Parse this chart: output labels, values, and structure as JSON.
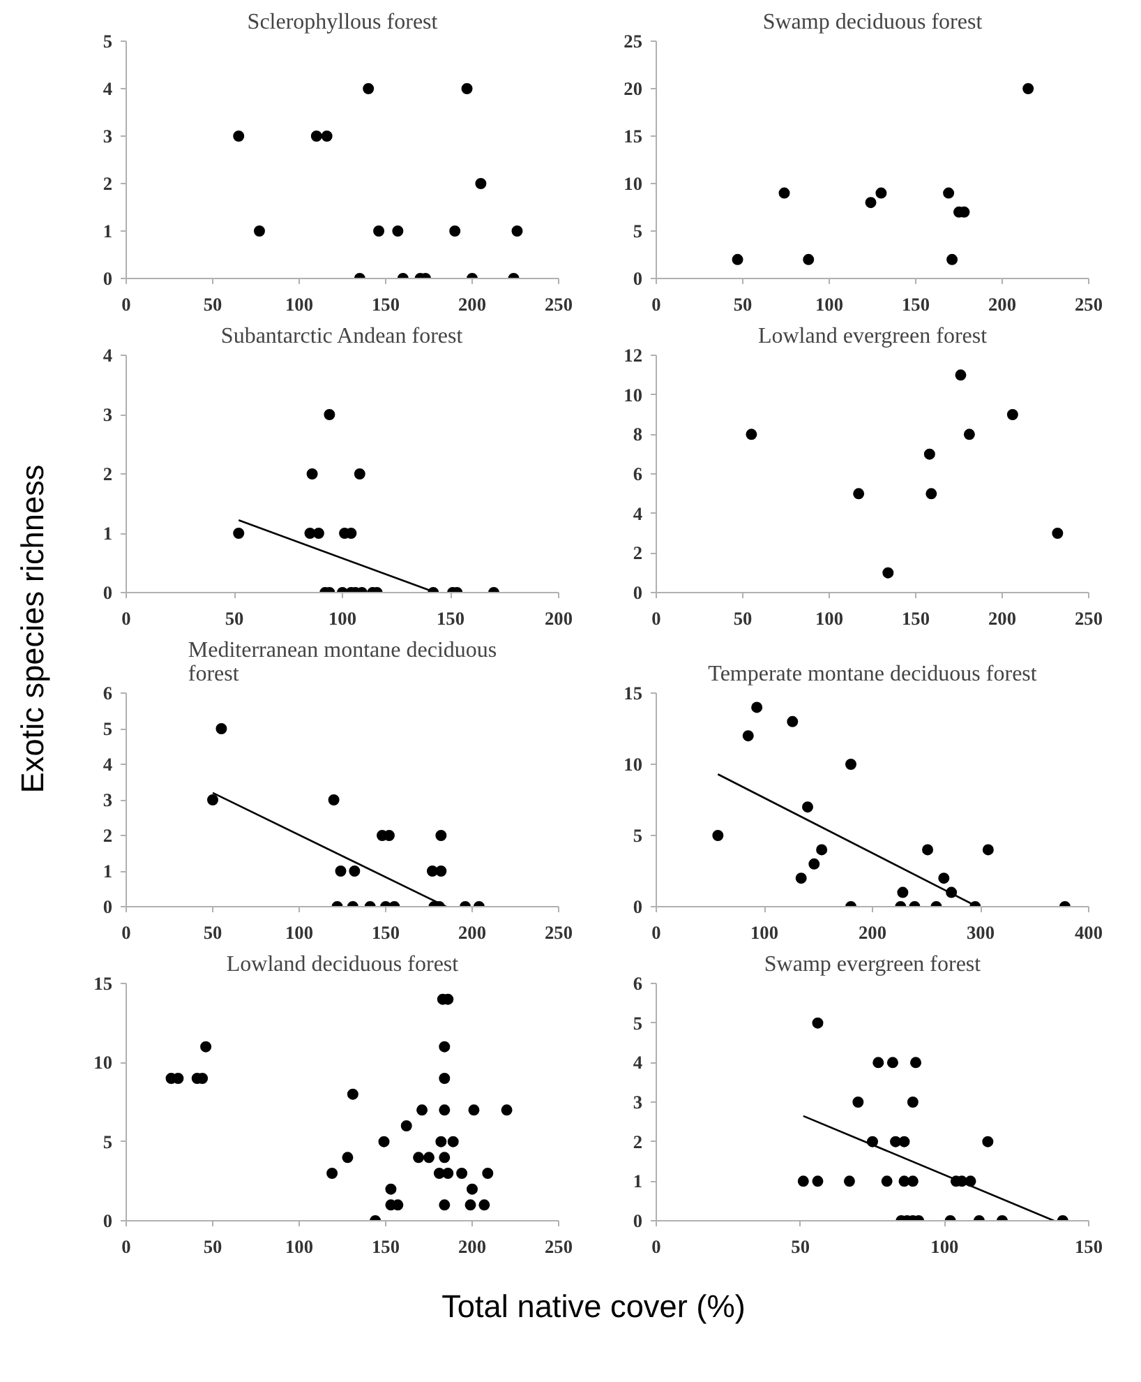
{
  "chart_data": [
    {
      "type": "scatter",
      "title": "Sclerophyllous forest",
      "xlim": [
        0,
        250
      ],
      "xticks": [
        0,
        50,
        100,
        150,
        200,
        250
      ],
      "ylim": [
        0,
        5
      ],
      "yticks": [
        0,
        1,
        2,
        3,
        4,
        5
      ],
      "series": [
        {
          "color": "#000000",
          "marker": "circle",
          "x": [
            65,
            77,
            110,
            116,
            140,
            135,
            146,
            157,
            160,
            170,
            173,
            190,
            197,
            200,
            205,
            224,
            226
          ],
          "values": [
            3,
            1,
            3,
            3,
            4,
            0,
            1,
            1,
            0,
            0,
            0,
            1,
            4,
            0,
            2,
            0,
            1
          ]
        }
      ]
    },
    {
      "type": "scatter",
      "title": "Swamp deciduous forest",
      "xlim": [
        0,
        250
      ],
      "xticks": [
        0,
        50,
        100,
        150,
        200,
        250
      ],
      "ylim": [
        0,
        25
      ],
      "yticks": [
        0,
        5,
        10,
        15,
        20,
        25
      ],
      "series": [
        {
          "color": "#000000",
          "marker": "circle",
          "x": [
            47,
            74,
            88,
            124,
            130,
            169,
            171,
            175,
            178,
            215
          ],
          "values": [
            2,
            9,
            2,
            8,
            9,
            9,
            2,
            7,
            7,
            20
          ]
        }
      ]
    },
    {
      "type": "scatter",
      "title": "Subantarctic Andean forest",
      "ylabel": "Exotic species richness",
      "xlim": [
        0,
        200
      ],
      "xticks": [
        0,
        50,
        100,
        150,
        200
      ],
      "ylim": [
        0,
        4
      ],
      "yticks": [
        0,
        1,
        2,
        3,
        4
      ],
      "series": [
        {
          "color": "#000000",
          "marker": "circle",
          "x": [
            52,
            86,
            85,
            89,
            94,
            92,
            94,
            100,
            101,
            104,
            108,
            104,
            106,
            109,
            114,
            116,
            142,
            151,
            153,
            170
          ],
          "values": [
            1,
            2,
            1,
            1,
            3,
            0,
            0,
            0,
            1,
            1,
            2,
            0,
            0,
            0,
            0,
            0,
            0,
            0,
            0,
            0
          ]
        },
        {
          "type": "line",
          "color": "#000000",
          "x": [
            52,
            141
          ],
          "values": [
            1.22,
            0.03
          ]
        }
      ]
    },
    {
      "type": "scatter",
      "title": "Lowland evergreen forest",
      "xlim": [
        0,
        250
      ],
      "xticks": [
        0,
        50,
        100,
        150,
        200,
        250
      ],
      "ylim": [
        0,
        12
      ],
      "yticks": [
        0,
        2,
        4,
        6,
        8,
        10,
        12
      ],
      "series": [
        {
          "color": "#000000",
          "marker": "circle",
          "x": [
            55,
            117,
            134,
            158,
            159,
            176,
            181,
            206,
            232
          ],
          "values": [
            8,
            5,
            1,
            7,
            5,
            11,
            8,
            9,
            3
          ]
        }
      ]
    },
    {
      "type": "scatter",
      "title": "Mediterranean montane deciduous forest",
      "xlim": [
        0,
        250
      ],
      "xticks": [
        0,
        50,
        100,
        150,
        200,
        250
      ],
      "ylim": [
        0,
        6
      ],
      "yticks": [
        0,
        1,
        2,
        3,
        4,
        5,
        6
      ],
      "series": [
        {
          "color": "#000000",
          "marker": "circle",
          "x": [
            50,
            55,
            120,
            124,
            122,
            132,
            131,
            141,
            148,
            152,
            150,
            155,
            177,
            182,
            182,
            178,
            181,
            196,
            204
          ],
          "values": [
            3,
            5,
            3,
            1,
            0,
            1,
            0,
            0,
            2,
            2,
            0,
            0,
            1,
            1,
            2,
            0,
            0,
            0,
            0
          ]
        },
        {
          "type": "line",
          "color": "#000000",
          "x": [
            50,
            185
          ],
          "values": [
            3.2,
            0
          ]
        }
      ]
    },
    {
      "type": "scatter",
      "title": "Temperate montane deciduous forest",
      "xlim": [
        0,
        400
      ],
      "xticks": [
        0,
        100,
        200,
        300,
        400
      ],
      "ylim": [
        0,
        15
      ],
      "yticks": [
        0,
        5,
        10,
        15
      ],
      "series": [
        {
          "color": "#000000",
          "marker": "circle",
          "x": [
            57,
            85,
            93,
            126,
            134,
            140,
            146,
            153,
            180,
            180,
            228,
            226,
            239,
            251,
            259,
            266,
            273,
            307,
            295,
            378
          ],
          "values": [
            5,
            12,
            14,
            13,
            2,
            7,
            3,
            4,
            10,
            0,
            1,
            0,
            0,
            4,
            0,
            2,
            1,
            4,
            0,
            0
          ]
        },
        {
          "type": "line",
          "color": "#000000",
          "x": [
            57,
            297
          ],
          "values": [
            9.3,
            0
          ]
        }
      ]
    },
    {
      "type": "scatter",
      "title": "Lowland deciduous forest",
      "xlim": [
        0,
        250
      ],
      "xticks": [
        0,
        50,
        100,
        150,
        200,
        250
      ],
      "ylim": [
        0,
        15
      ],
      "yticks": [
        0,
        5,
        10,
        15
      ],
      "series": [
        {
          "color": "#000000",
          "marker": "circle",
          "x": [
            26,
            30,
            41,
            44,
            46,
            119,
            128,
            131,
            149,
            144,
            153,
            153,
            157,
            162,
            171,
            169,
            175,
            183,
            186,
            184,
            184,
            184,
            182,
            189,
            184,
            181,
            186,
            184,
            194,
            201,
            200,
            199,
            207,
            209,
            220
          ],
          "values": [
            9,
            9,
            9,
            9,
            11,
            3,
            4,
            8,
            5,
            0,
            2,
            1,
            1,
            6,
            7,
            4,
            4,
            14,
            14,
            11,
            9,
            7,
            5,
            5,
            4,
            3,
            3,
            1,
            3,
            7,
            2,
            1,
            1,
            3,
            7
          ]
        }
      ]
    },
    {
      "type": "scatter",
      "title": "Swamp evergreen forest",
      "xlabel": "Total native cover (%)",
      "xlim": [
        0,
        150
      ],
      "xticks": [
        0,
        50,
        100,
        150
      ],
      "ylim": [
        0,
        6
      ],
      "yticks": [
        0,
        1,
        2,
        3,
        4,
        5,
        6
      ],
      "series": [
        {
          "color": "#000000",
          "marker": "circle",
          "x": [
            51,
            56,
            56,
            67,
            70,
            75,
            77,
            80,
            82,
            83,
            86,
            86,
            89,
            85,
            87,
            89,
            91,
            89,
            90,
            102,
            104,
            106,
            109,
            112,
            115,
            120,
            141
          ],
          "values": [
            1,
            5,
            1,
            1,
            3,
            2,
            4,
            1,
            4,
            2,
            2,
            1,
            1,
            0,
            0,
            0,
            0,
            3,
            4,
            0,
            1,
            1,
            1,
            0,
            2,
            0,
            0
          ]
        },
        {
          "type": "line",
          "color": "#000000",
          "x": [
            51,
            138
          ],
          "values": [
            2.65,
            0
          ]
        }
      ]
    }
  ]
}
